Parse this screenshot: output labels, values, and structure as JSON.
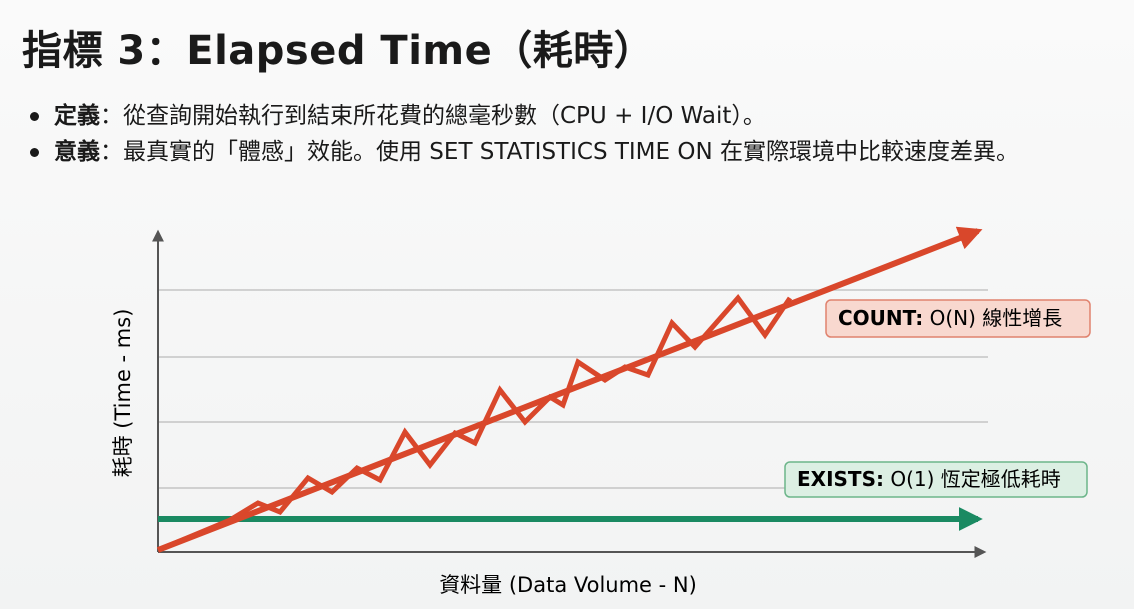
{
  "title": "指標 3：Elapsed Time（耗時）",
  "bullets": [
    {
      "term": "定義",
      "text": "：從查詢開始執行到結束所花費的總毫秒數（CPU + I/O Wait）。"
    },
    {
      "term": "意義",
      "text": "：最真實的「體感」效能。使用 SET STATISTICS TIME ON 在實際環境中比較速度差異。"
    }
  ],
  "diagram": {
    "y_label": "耗時 (Time - ms)",
    "x_label": "資料量 (Data Volume - N)",
    "count_label": {
      "term": "COUNT:",
      "text": " O(N) 線性增長"
    },
    "exists_label": {
      "term": "EXISTS:",
      "text": " O(1) 恆定極低耗時"
    }
  }
}
